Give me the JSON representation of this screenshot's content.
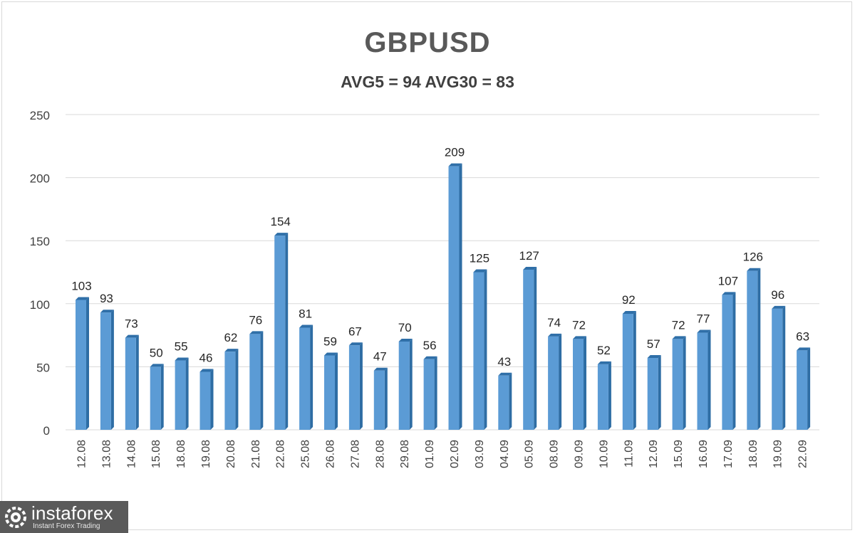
{
  "chart_data": {
    "type": "bar",
    "title": "GBPUSD",
    "subtitle": "AVG5 = 94 AVG30 = 83",
    "categories": [
      "12.08",
      "13.08",
      "14.08",
      "15.08",
      "18.08",
      "19.08",
      "20.08",
      "21.08",
      "22.08",
      "25.08",
      "26.08",
      "27.08",
      "28.08",
      "29.08",
      "01.09",
      "02.09",
      "03.09",
      "04.09",
      "05.09",
      "08.09",
      "09.09",
      "10.09",
      "11.09",
      "12.09",
      "15.09",
      "16.09",
      "17.09",
      "18.09",
      "19.09",
      "22.09"
    ],
    "values": [
      103,
      93,
      73,
      50,
      55,
      46,
      62,
      76,
      154,
      81,
      59,
      67,
      47,
      70,
      56,
      209,
      125,
      43,
      127,
      74,
      72,
      52,
      92,
      57,
      72,
      77,
      107,
      126,
      96,
      63
    ],
    "ylim": [
      0,
      250
    ],
    "yticks": [
      0,
      50,
      100,
      150,
      200,
      250
    ],
    "grid": true,
    "legend": "none",
    "bar_color": "#5b9bd5",
    "bar_side_color": "#2e6da4"
  },
  "watermark": {
    "name": "instaforex",
    "tagline": "Instant Forex Trading"
  }
}
